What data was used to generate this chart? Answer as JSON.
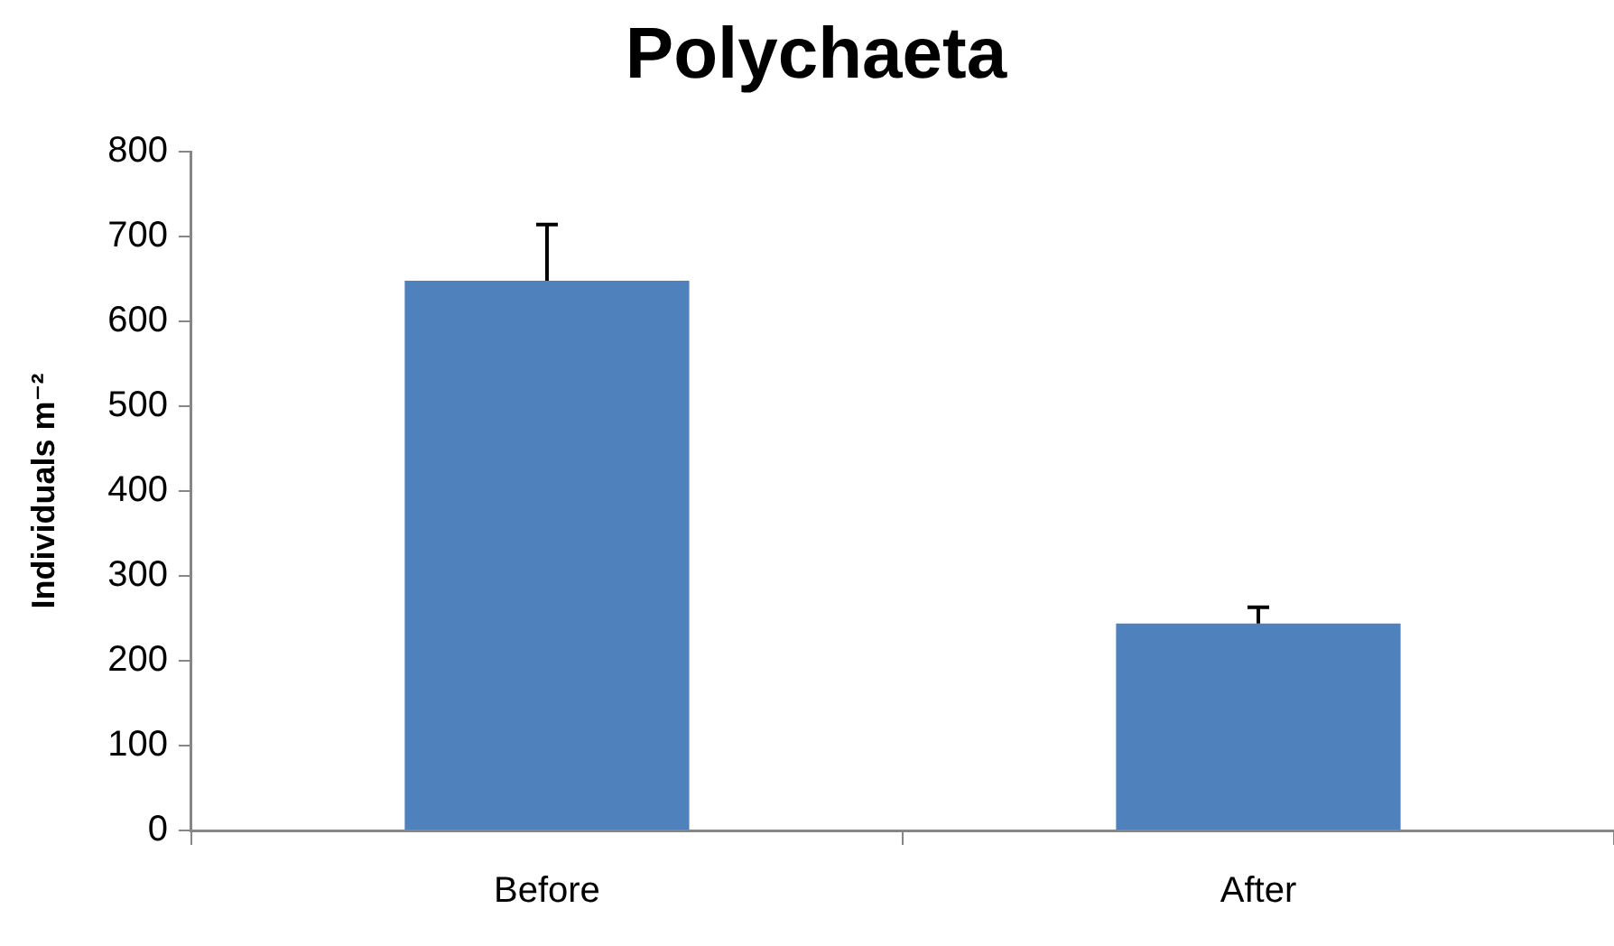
{
  "chart_data": {
    "type": "bar",
    "title": "Polychaeta",
    "ylabel": "Individuals m⁻²",
    "categories": [
      "Before",
      "After"
    ],
    "values": [
      648,
      244
    ],
    "errors": [
      [
        648,
        714
      ],
      [
        244,
        263
      ]
    ],
    "color": "#4f81bd",
    "ylim": [
      0,
      800
    ],
    "yticks": [
      0,
      100,
      200,
      300,
      400,
      500,
      600,
      700,
      800
    ],
    "grid": false,
    "legend": false
  }
}
